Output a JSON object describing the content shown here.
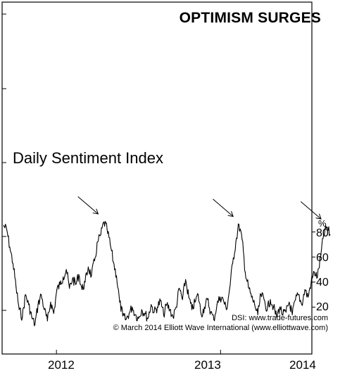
{
  "chart_data": {
    "type": "line",
    "title": "OPTIMISM SURGES",
    "subtitle": "Daily Sentiment Index",
    "y_unit": "%",
    "y_ticks": [
      20,
      40,
      60,
      80
    ],
    "ylim": [
      0,
      100
    ],
    "x_ticks": [
      "2012",
      "2013",
      "2014"
    ],
    "credits": [
      "DSI: www.trade-futures.com",
      "© March 2014 Elliott Wave International (www.elliottwave.com)"
    ],
    "series": [
      {
        "points": [
          [
            "2011-09-05",
            85
          ],
          [
            "2011-09-12",
            82
          ],
          [
            "2011-09-19",
            68
          ],
          [
            "2011-09-26",
            55
          ],
          [
            "2011-10-03",
            36
          ],
          [
            "2011-10-10",
            18
          ],
          [
            "2011-10-17",
            12
          ],
          [
            "2011-10-24",
            30
          ],
          [
            "2011-10-31",
            22
          ],
          [
            "2011-11-07",
            12
          ],
          [
            "2011-11-14",
            6
          ],
          [
            "2011-11-21",
            22
          ],
          [
            "2011-11-28",
            30
          ],
          [
            "2011-12-05",
            18
          ],
          [
            "2011-12-12",
            9
          ],
          [
            "2011-12-19",
            24
          ],
          [
            "2011-12-26",
            15
          ],
          [
            "2012-01-02",
            34
          ],
          [
            "2012-01-09",
            38
          ],
          [
            "2012-01-16",
            44
          ],
          [
            "2012-01-23",
            50
          ],
          [
            "2012-01-30",
            35
          ],
          [
            "2012-02-06",
            43
          ],
          [
            "2012-02-13",
            38
          ],
          [
            "2012-02-20",
            46
          ],
          [
            "2012-02-27",
            34
          ],
          [
            "2012-03-05",
            40
          ],
          [
            "2012-03-12",
            52
          ],
          [
            "2012-03-19",
            45
          ],
          [
            "2012-03-26",
            57
          ],
          [
            "2012-04-02",
            72
          ],
          [
            "2012-04-09",
            78
          ],
          [
            "2012-04-16",
            88
          ],
          [
            "2012-04-23",
            82
          ],
          [
            "2012-04-30",
            70
          ],
          [
            "2012-05-07",
            56
          ],
          [
            "2012-05-14",
            45
          ],
          [
            "2012-05-21",
            24
          ],
          [
            "2012-05-28",
            13
          ],
          [
            "2012-06-04",
            10
          ],
          [
            "2012-06-11",
            15
          ],
          [
            "2012-06-18",
            20
          ],
          [
            "2012-06-25",
            14
          ],
          [
            "2012-07-02",
            11
          ],
          [
            "2012-07-09",
            18
          ],
          [
            "2012-07-16",
            15
          ],
          [
            "2012-07-23",
            11
          ],
          [
            "2012-07-30",
            22
          ],
          [
            "2012-08-06",
            16
          ],
          [
            "2012-08-13",
            20
          ],
          [
            "2012-08-20",
            25
          ],
          [
            "2012-08-27",
            14
          ],
          [
            "2012-09-03",
            22
          ],
          [
            "2012-09-10",
            18
          ],
          [
            "2012-09-17",
            12
          ],
          [
            "2012-09-24",
            20
          ],
          [
            "2012-10-01",
            35
          ],
          [
            "2012-10-08",
            26
          ],
          [
            "2012-10-15",
            42
          ],
          [
            "2012-10-22",
            28
          ],
          [
            "2012-10-29",
            18
          ],
          [
            "2012-11-05",
            24
          ],
          [
            "2012-11-12",
            30
          ],
          [
            "2012-11-19",
            14
          ],
          [
            "2012-11-26",
            20
          ],
          [
            "2012-12-03",
            26
          ],
          [
            "2012-12-10",
            16
          ],
          [
            "2012-12-17",
            10
          ],
          [
            "2012-12-24",
            22
          ],
          [
            "2012-12-31",
            28
          ],
          [
            "2013-01-07",
            26
          ],
          [
            "2013-01-14",
            18
          ],
          [
            "2013-01-21",
            34
          ],
          [
            "2013-01-28",
            55
          ],
          [
            "2013-02-04",
            72
          ],
          [
            "2013-02-11",
            86
          ],
          [
            "2013-02-18",
            74
          ],
          [
            "2013-02-25",
            48
          ],
          [
            "2013-03-04",
            36
          ],
          [
            "2013-03-11",
            28
          ],
          [
            "2013-03-18",
            22
          ],
          [
            "2013-03-25",
            14
          ],
          [
            "2013-04-01",
            30
          ],
          [
            "2013-04-08",
            26
          ],
          [
            "2013-04-15",
            18
          ],
          [
            "2013-04-22",
            26
          ],
          [
            "2013-04-29",
            20
          ],
          [
            "2013-05-06",
            12
          ],
          [
            "2013-05-13",
            20
          ],
          [
            "2013-05-20",
            14
          ],
          [
            "2013-05-27",
            16
          ],
          [
            "2013-06-03",
            24
          ],
          [
            "2013-06-10",
            14
          ],
          [
            "2013-06-17",
            26
          ],
          [
            "2013-06-24",
            30
          ],
          [
            "2013-07-01",
            22
          ],
          [
            "2013-07-08",
            34
          ],
          [
            "2013-07-15",
            28
          ],
          [
            "2013-07-22",
            40
          ],
          [
            "2013-07-29",
            48
          ],
          [
            "2013-08-05",
            44
          ],
          [
            "2013-08-12",
            60
          ],
          [
            "2013-08-19",
            78
          ],
          [
            "2013-08-26",
            84
          ],
          [
            "2013-09-02",
            78
          ]
        ]
      }
    ],
    "annotations": [
      {
        "type": "arrow",
        "points_to": "2012-04-16"
      },
      {
        "type": "arrow",
        "points_to": "2013-02-11"
      },
      {
        "type": "arrow",
        "points_to": "2013-08-26"
      }
    ]
  }
}
